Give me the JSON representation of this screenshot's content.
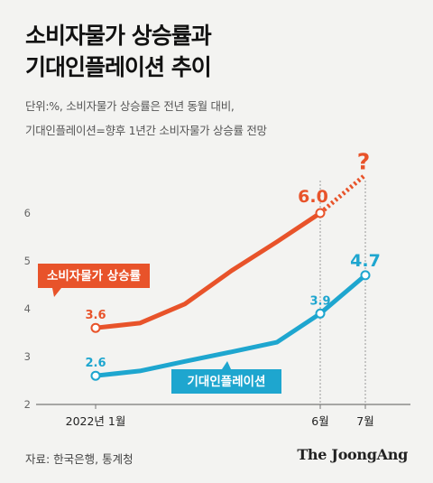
{
  "title": [
    "소비자물가 상승률과",
    "기대인플레이션 추이"
  ],
  "subtitle": [
    "단위:%, 소비자물가 상승률은 전년 동월 대비,",
    "기대인플레이션=향후 1년간 소비자물가 상승률 전망"
  ],
  "source": "자료: 한국은행, 통계청",
  "brand": "The JoongAng",
  "colors": {
    "cpi": "#e8532a",
    "expected": "#1ea6cf",
    "axis": "#777777",
    "guide": "#999999",
    "grid": "#cccccc"
  },
  "chart_data": {
    "type": "line",
    "x_ticks": [
      {
        "index": 0,
        "label": "2022년 1월"
      },
      {
        "index": 5,
        "label": "6월"
      },
      {
        "index": 6,
        "label": "7월"
      }
    ],
    "yticks": [
      2,
      3,
      4,
      5,
      6
    ],
    "ylim": [
      2,
      7
    ],
    "grid": false,
    "series": [
      {
        "name": "소비자물가 상승률",
        "color": "#e8532a",
        "values": [
          3.6,
          3.7,
          4.1,
          4.8,
          5.4,
          6.0
        ],
        "labeled_points": [
          {
            "index": 0,
            "label": "3.6"
          },
          {
            "index": 5,
            "label": "6.0"
          }
        ],
        "projection": {
          "index": 6,
          "value": 6.8,
          "label": "?"
        }
      },
      {
        "name": "기대인플레이션",
        "color": "#1ea6cf",
        "values": [
          2.6,
          2.7,
          2.9,
          3.1,
          3.3,
          3.9,
          4.7
        ],
        "labeled_points": [
          {
            "index": 0,
            "label": "2.6"
          },
          {
            "index": 5,
            "label": "3.9"
          },
          {
            "index": 6,
            "label": "4.7"
          }
        ]
      }
    ]
  }
}
